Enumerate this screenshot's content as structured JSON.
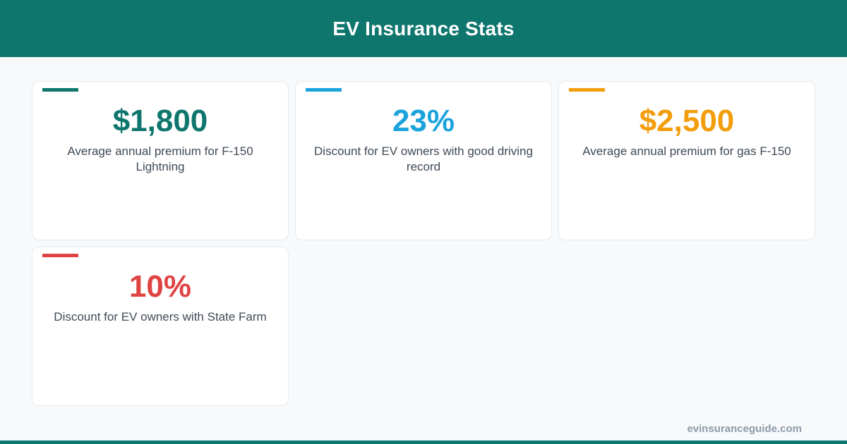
{
  "header": {
    "title": "EV Insurance Stats"
  },
  "stats": [
    {
      "value": "$1,800",
      "label": "Average annual premium for F-150 Lightning",
      "color": "#0f766e"
    },
    {
      "value": "23%",
      "label": "Discount for EV owners with good driving record",
      "color": "#1aa3dc"
    },
    {
      "value": "$2,500",
      "label": "Average annual premium for gas F-150",
      "color": "#f29d0c"
    },
    {
      "value": "10%",
      "label": "Discount for EV owners with State Farm",
      "color": "#e04343"
    }
  ],
  "footer": {
    "site": "evinsuranceguide.com"
  }
}
